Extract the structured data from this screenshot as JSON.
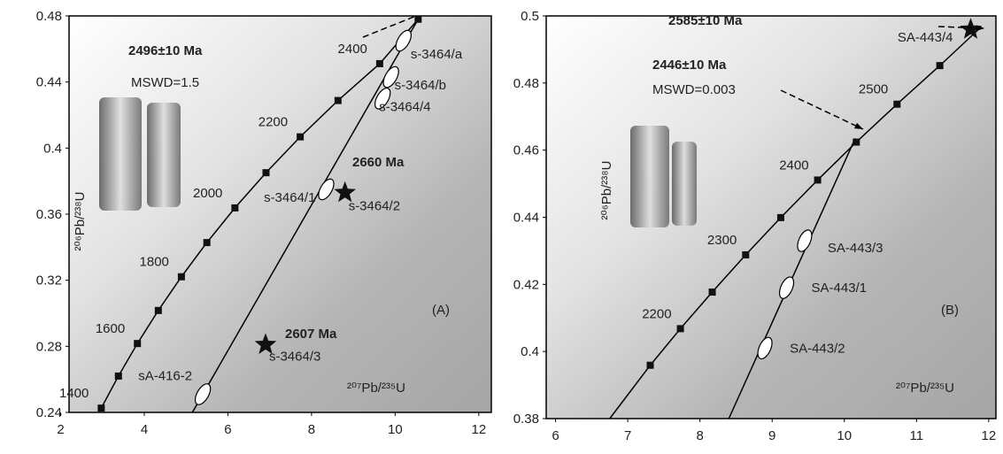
{
  "chart_data": [
    {
      "type": "concordia",
      "xlabel": "²⁰⁷Pb/²³⁵U",
      "ylabel": "²⁰⁶Pb/²³⁸U",
      "xlim": [
        2.2,
        12.3
      ],
      "ylim": [
        0.24,
        0.48
      ],
      "xticks": [
        2,
        4,
        6,
        8,
        10,
        12
      ],
      "yticks": [
        0.24,
        0.28,
        0.32,
        0.36,
        0.4,
        0.44,
        0.48
      ],
      "concordia": {
        "ages": [
          1400,
          null,
          1600,
          null,
          1800,
          null,
          2000,
          null,
          2200,
          null,
          2400,
          null
        ],
        "x": [
          2.97,
          3.381,
          3.835,
          4.335,
          4.887,
          5.496,
          6.168,
          6.911,
          7.729,
          8.633,
          9.63,
          10.55
        ],
        "y": [
          0.2426,
          0.262,
          0.2817,
          0.3017,
          0.3221,
          0.3428,
          0.3638,
          0.3851,
          0.4068,
          0.4288,
          0.4511,
          0.478
        ]
      },
      "discordia": [
        {
          "x": [
            5.15,
            10.55
          ],
          "y": [
            0.24,
            0.478
          ]
        }
      ],
      "ellipses": [
        {
          "label": "s-3464/a",
          "x": 10.2,
          "y": 0.465
        },
        {
          "label": "s-3464/b",
          "x": 9.9,
          "y": 0.443
        },
        {
          "label": "s-3464/4",
          "x": 9.7,
          "y": 0.43
        },
        {
          "label": "s-3464/1",
          "x": 8.35,
          "y": 0.375
        },
        {
          "label": "sA-416-2",
          "x": 5.4,
          "y": 0.251
        }
      ],
      "stars": [
        {
          "label": "s-3464/2",
          "x": 8.8,
          "y": 0.373
        },
        {
          "label": "s-3464/3",
          "x": 6.9,
          "y": 0.281
        }
      ],
      "annotations": [
        "2496±10 Ma",
        "MSWD=1.5",
        "2660 Ma",
        "2607 Ma",
        "(A)"
      ]
    },
    {
      "type": "concordia",
      "xlabel": "²⁰⁷Pb/²³⁵U",
      "ylabel": "²⁰⁶Pb/²³⁸U",
      "xlim": [
        5.87,
        12.1
      ],
      "ylim": [
        0.38,
        0.5
      ],
      "xticks": [
        6,
        7,
        8,
        9,
        10,
        11,
        12
      ],
      "yticks": [
        0.38,
        0.4,
        0.42,
        0.44,
        0.46,
        0.48,
        0.5
      ],
      "concordia": {
        "ages": [
          null,
          2200,
          null,
          2300,
          null,
          2400,
          null,
          2500,
          null
        ],
        "x": [
          7.311,
          7.729,
          8.17,
          8.633,
          9.119,
          9.63,
          10.166,
          10.73,
          11.323
        ],
        "y": [
          0.3959,
          0.4068,
          0.4177,
          0.4288,
          0.4399,
          0.4511,
          0.4624,
          0.4737,
          0.4852
        ]
      },
      "discordia": [
        {
          "x": [
            6.75,
            7.311
          ],
          "y": [
            0.38,
            0.3959
          ]
        },
        {
          "x": [
            11.323,
            11.9
          ],
          "y": [
            0.4852,
            0.4968
          ]
        },
        {
          "x": [
            8.4,
            10.15
          ],
          "y": [
            0.38,
            0.4635
          ]
        }
      ],
      "ellipses": [
        {
          "label": "SA-443/3",
          "x": 9.45,
          "y": 0.433
        },
        {
          "label": "SA-443/1",
          "x": 9.2,
          "y": 0.419
        },
        {
          "label": "SA-443/2",
          "x": 8.9,
          "y": 0.401
        }
      ],
      "stars": [
        {
          "label": "SA-443/4",
          "x": 11.75,
          "y": 0.496
        }
      ],
      "annotations": [
        "2585±10 Ma",
        "2446±10 Ma",
        "MSWD=0.003",
        "(B)"
      ]
    }
  ]
}
